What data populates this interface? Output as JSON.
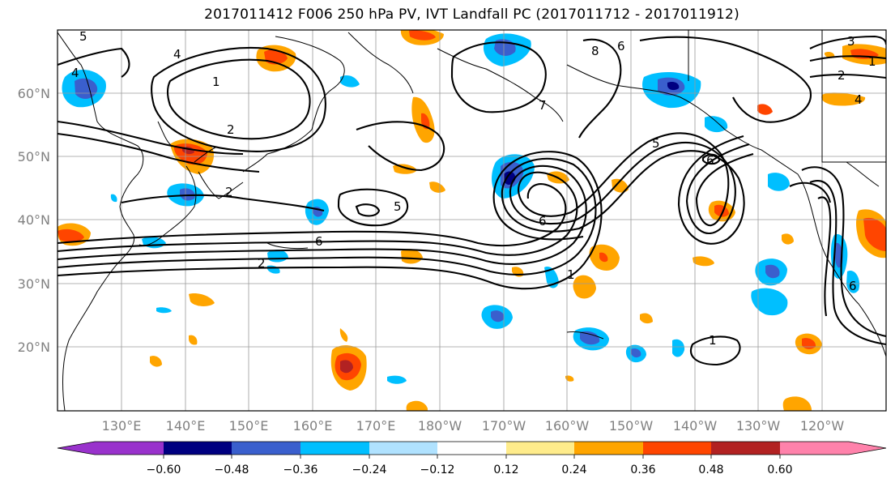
{
  "title": "2017011412 F006 250 hPa PV, IVT Landfall PC (2017011712 - 2017011912)",
  "map": {
    "lat_labels": [
      "60°N",
      "50°N",
      "40°N",
      "30°N",
      "20°N"
    ],
    "lon_labels": [
      "130°E",
      "140°E",
      "150°E",
      "160°E",
      "170°E",
      "180°W",
      "170°W",
      "160°W",
      "150°W",
      "140°W",
      "130°W",
      "120°W"
    ],
    "contour_labels": [
      "5",
      "4",
      "1",
      "2",
      "6",
      "2",
      "5",
      "6",
      "7",
      "8",
      "6",
      "5",
      "6",
      "1",
      "3",
      "2",
      "4",
      "6",
      "1",
      "1",
      "2",
      "4"
    ]
  },
  "colorbar": {
    "ticks": [
      "−0.60",
      "−0.48",
      "−0.36",
      "−0.24",
      "−0.12",
      "0.12",
      "0.24",
      "0.36",
      "0.48",
      "0.60"
    ],
    "colors": [
      "#9932CC",
      "#000080",
      "#3A5FCD",
      "#00BFFF",
      "#B0E2FF",
      "#FFFFFF",
      "#FFEC8B",
      "#FFA500",
      "#FF4500",
      "#B22222",
      "#FF82AB"
    ]
  },
  "legend_colors": {
    "purple": "#9932CC",
    "navy": "#000080",
    "blue": "#3A5FCD",
    "cyan": "#00BFFF",
    "light_blue": "#B0E2FF",
    "white": "#FFFFFF",
    "yellow": "#FFEC8B",
    "orange": "#FFA500",
    "red_orange": "#FF4500",
    "dark_red": "#B22222",
    "pink": "#FF82AB"
  }
}
